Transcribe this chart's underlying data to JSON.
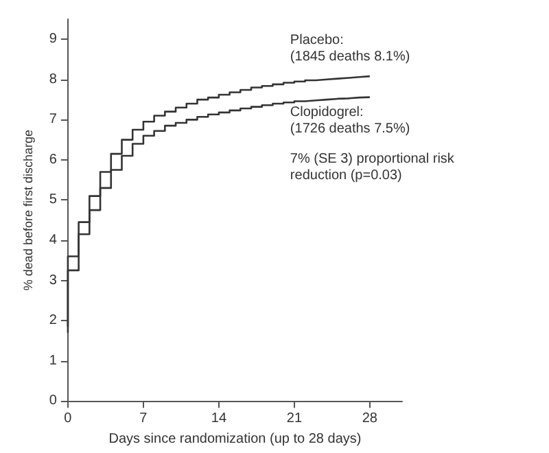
{
  "chart_data": {
    "type": "step",
    "xlabel": "Days since randomization (up to 28 days)",
    "ylabel": "% dead before first discharge",
    "x": [
      0,
      1,
      2,
      3,
      4,
      5,
      6,
      7,
      8,
      9,
      10,
      11,
      12,
      13,
      14,
      15,
      16,
      17,
      18,
      19,
      20,
      21,
      22,
      23,
      24,
      25,
      26,
      27,
      28
    ],
    "series": [
      {
        "name": "Placebo:\n(1845 deaths 8.1%)",
        "color": "#333333",
        "values": [
          1.85,
          3.6,
          4.45,
          5.1,
          5.7,
          6.15,
          6.5,
          6.75,
          6.95,
          7.1,
          7.2,
          7.3,
          7.4,
          7.5,
          7.55,
          7.62,
          7.68,
          7.74,
          7.8,
          7.84,
          7.88,
          7.92,
          7.95,
          7.98,
          8.0,
          8.02,
          8.04,
          8.06,
          8.08
        ]
      },
      {
        "name": "Clopidogrel:\n(1726 deaths 7.5%)",
        "color": "#333333",
        "values": [
          1.7,
          3.25,
          4.15,
          4.75,
          5.3,
          5.75,
          6.1,
          6.4,
          6.6,
          6.72,
          6.85,
          6.92,
          7.0,
          7.07,
          7.13,
          7.18,
          7.23,
          7.28,
          7.32,
          7.36,
          7.4,
          7.43,
          7.46,
          7.48,
          7.5,
          7.52,
          7.53,
          7.55,
          7.56
        ]
      }
    ],
    "annotations": [
      "7% (SE 3) proportional risk\nreduction (p=0.03)"
    ],
    "xlim": [
      0,
      31
    ],
    "xticks": [
      0,
      7,
      14,
      21,
      28
    ],
    "ylim": [
      0,
      9.5
    ],
    "yticks": [
      0,
      1,
      2,
      3,
      4,
      5,
      6,
      7,
      8,
      9
    ],
    "grid": false,
    "legend": false,
    "marker": "none",
    "line_style": "solid"
  }
}
